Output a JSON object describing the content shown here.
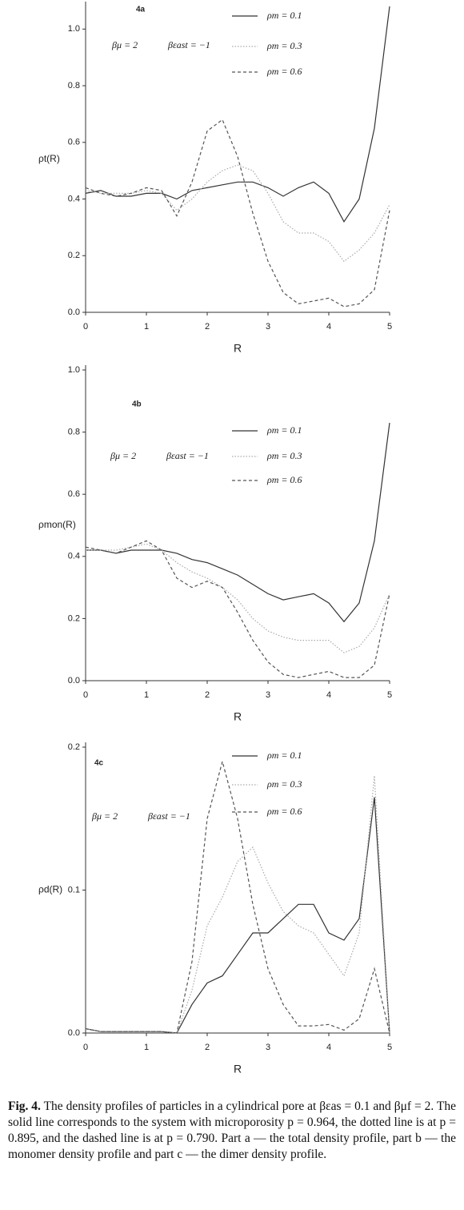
{
  "chart_data": [
    {
      "type": "line",
      "panel": "4a",
      "xlabel": "R",
      "ylabel": "ρt(R)",
      "annotations": [
        "βμ = 2",
        "βεast = −1"
      ],
      "x": [
        0,
        0.25,
        0.5,
        0.75,
        1,
        1.25,
        1.5,
        1.75,
        2,
        2.25,
        2.5,
        2.75,
        3,
        3.25,
        3.5,
        3.75,
        4,
        4.25,
        4.5,
        4.75,
        5
      ],
      "series": [
        {
          "name": "ρm = 0.1",
          "color": "#333333",
          "line_style": "solid",
          "values": [
            0.42,
            0.43,
            0.41,
            0.41,
            0.42,
            0.42,
            0.4,
            0.43,
            0.44,
            0.45,
            0.46,
            0.46,
            0.44,
            0.41,
            0.44,
            0.46,
            0.42,
            0.32,
            0.4,
            0.65,
            1.08
          ]
        },
        {
          "name": "ρm = 0.3",
          "color": "#aaaaaa",
          "line_style": "dotted",
          "values": [
            0.43,
            0.42,
            0.42,
            0.42,
            0.43,
            0.42,
            0.36,
            0.4,
            0.46,
            0.5,
            0.52,
            0.5,
            0.42,
            0.32,
            0.28,
            0.28,
            0.25,
            0.18,
            0.22,
            0.28,
            0.38
          ]
        },
        {
          "name": "ρm = 0.6",
          "color": "#555555",
          "line_style": "dashed",
          "values": [
            0.44,
            0.42,
            0.41,
            0.42,
            0.44,
            0.43,
            0.34,
            0.46,
            0.64,
            0.68,
            0.55,
            0.35,
            0.18,
            0.07,
            0.03,
            0.04,
            0.05,
            0.02,
            0.03,
            0.08,
            0.36
          ]
        }
      ],
      "xlim": [
        0,
        5
      ],
      "xticks": [
        0,
        1,
        2,
        3,
        4,
        5
      ],
      "ylim": [
        0,
        1.08
      ],
      "yticks": [
        {
          "value": 0,
          "label": "0.0"
        },
        0.2,
        0.4,
        0.6,
        0.8,
        {
          "value": 1,
          "label": "1.0"
        }
      ]
    },
    {
      "type": "line",
      "panel": "4b",
      "xlabel": "R",
      "ylabel": "ρmon(R)",
      "annotations": [
        "βμ = 2",
        "βεast = −1"
      ],
      "x": [
        0,
        0.25,
        0.5,
        0.75,
        1,
        1.25,
        1.5,
        1.75,
        2,
        2.25,
        2.5,
        2.75,
        3,
        3.25,
        3.5,
        3.75,
        4,
        4.25,
        4.5,
        4.75,
        5
      ],
      "series": [
        {
          "name": "ρm = 0.1",
          "color": "#333333",
          "line_style": "solid",
          "values": [
            0.42,
            0.42,
            0.41,
            0.42,
            0.42,
            0.42,
            0.41,
            0.39,
            0.38,
            0.36,
            0.34,
            0.31,
            0.28,
            0.26,
            0.27,
            0.28,
            0.25,
            0.19,
            0.25,
            0.45,
            0.83
          ]
        },
        {
          "name": "ρm = 0.3",
          "color": "#aaaaaa",
          "line_style": "dotted",
          "values": [
            0.42,
            0.42,
            0.42,
            0.43,
            0.44,
            0.42,
            0.38,
            0.35,
            0.33,
            0.3,
            0.26,
            0.2,
            0.16,
            0.14,
            0.13,
            0.13,
            0.13,
            0.09,
            0.11,
            0.17,
            0.28
          ]
        },
        {
          "name": "ρm = 0.6",
          "color": "#555555",
          "line_style": "dashed",
          "values": [
            0.43,
            0.42,
            0.41,
            0.43,
            0.45,
            0.42,
            0.33,
            0.3,
            0.32,
            0.3,
            0.22,
            0.13,
            0.06,
            0.02,
            0.01,
            0.02,
            0.03,
            0.01,
            0.01,
            0.05,
            0.28
          ]
        }
      ],
      "xlim": [
        0,
        5
      ],
      "xticks": [
        0,
        1,
        2,
        3,
        4,
        5
      ],
      "ylim": [
        0,
        1
      ],
      "yticks": [
        {
          "value": 0,
          "label": "0.0"
        },
        0.2,
        0.4,
        0.6,
        0.8,
        {
          "value": 1,
          "label": "1.0"
        }
      ]
    },
    {
      "type": "line",
      "panel": "4c",
      "xlabel": "R",
      "ylabel": "ρd(R)",
      "annotations": [
        "βμ = 2",
        "βεast = −1"
      ],
      "x": [
        0,
        0.25,
        0.5,
        0.75,
        1,
        1.25,
        1.5,
        1.75,
        2,
        2.25,
        2.5,
        2.75,
        3,
        3.25,
        3.5,
        3.75,
        4,
        4.25,
        4.5,
        4.75,
        5
      ],
      "series": [
        {
          "name": "ρm = 0.1",
          "color": "#333333",
          "line_style": "solid",
          "values": [
            0.003,
            0.001,
            0.001,
            0.001,
            0.001,
            0.001,
            0,
            0.02,
            0.035,
            0.04,
            0.055,
            0.07,
            0.07,
            0.08,
            0.09,
            0.09,
            0.07,
            0.065,
            0.08,
            0.165,
            0
          ]
        },
        {
          "name": "ρm = 0.3",
          "color": "#aaaaaa",
          "line_style": "dotted",
          "values": [
            0.003,
            0.001,
            0.001,
            0.001,
            0.001,
            0.001,
            0,
            0.03,
            0.075,
            0.095,
            0.12,
            0.13,
            0.105,
            0.085,
            0.075,
            0.07,
            0.055,
            0.04,
            0.07,
            0.18,
            0
          ]
        },
        {
          "name": "ρm = 0.6",
          "color": "#555555",
          "line_style": "dashed",
          "values": [
            0.003,
            0.001,
            0.001,
            0.001,
            0.001,
            0.001,
            0,
            0.05,
            0.15,
            0.19,
            0.15,
            0.09,
            0.045,
            0.02,
            0.005,
            0.005,
            0.006,
            0.002,
            0.01,
            0.045,
            0
          ]
        }
      ],
      "xlim": [
        0,
        5
      ],
      "xticks": [
        0,
        1,
        2,
        3,
        4,
        5
      ],
      "ylim": [
        0,
        0.2
      ],
      "yticks": [
        {
          "value": 0,
          "label": "0.0"
        },
        0.1,
        0.2
      ]
    }
  ],
  "caption": {
    "label": "Fig. 4.",
    "text": "The density profiles of particles in a cylindrical pore at βεas = 0.1 and βμf = 2. The solid line corresponds to the system with microporosity p = 0.964, the dotted line is at p = 0.895, and the dashed line is at p = 0.790. Part a — the total density profile, part b — the monomer density profile and part c — the dimer density profile."
  }
}
